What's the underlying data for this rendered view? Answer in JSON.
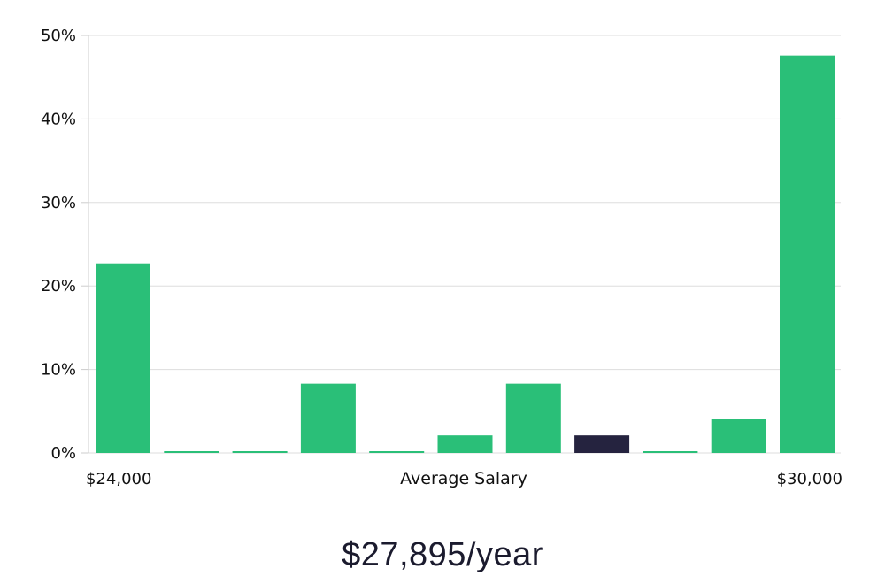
{
  "colors": {
    "bar": "#2abf78",
    "highlight": "#25233f",
    "grid": "#dddddd",
    "axis": "#cccccc"
  },
  "chart_data": {
    "type": "bar",
    "x_min_label": "$24,000",
    "x_max_label": "$30,000",
    "xlabel": "Average Salary",
    "ylabel": "",
    "ylim": [
      0,
      50
    ],
    "yticks": [
      "0%",
      "10%",
      "20%",
      "30%",
      "40%",
      "50%"
    ],
    "ytick_values": [
      0,
      10,
      20,
      30,
      40,
      50
    ],
    "grid": true,
    "values": [
      22.7,
      0,
      0,
      8.3,
      0,
      2.1,
      8.3,
      2.1,
      0,
      4.1,
      47.6
    ],
    "highlight_index": 7
  },
  "salary_text": "$27,895/year"
}
